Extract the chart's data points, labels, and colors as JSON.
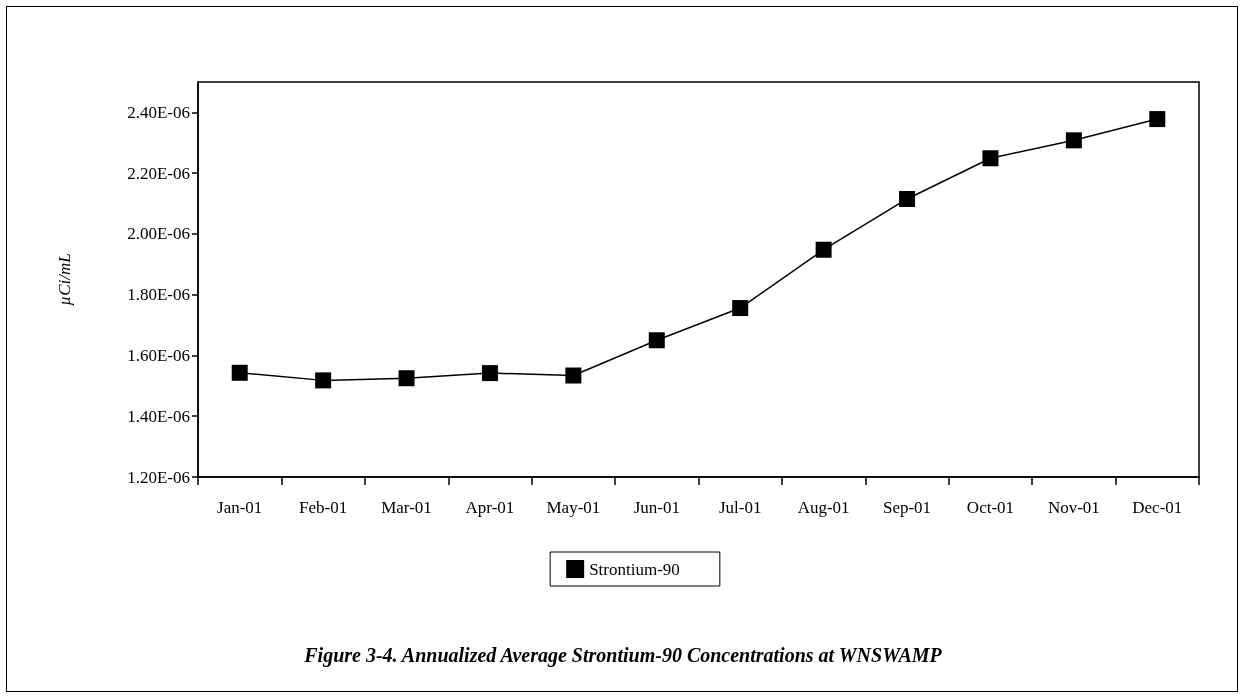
{
  "chart_data": {
    "type": "line",
    "title": "Figure 3-4. Annualized Average Strontium-90 Concentrations at WNSWAMP",
    "ylabel": "µCi/mL",
    "categories": [
      "Jan-01",
      "Feb-01",
      "Mar-01",
      "Apr-01",
      "May-01",
      "Jun-01",
      "Jul-01",
      "Aug-01",
      "Sep-01",
      "Oct-01",
      "Nov-01",
      "Dec-01"
    ],
    "series": [
      {
        "name": "Strontium-90",
        "color": "#000000",
        "values": [
          1.543e-06,
          1.518e-06,
          1.525e-06,
          1.542e-06,
          1.534e-06,
          1.65e-06,
          1.756e-06,
          1.948e-06,
          2.115e-06,
          2.249e-06,
          2.308e-06,
          2.378e-06
        ]
      }
    ],
    "ylim": [
      1.2e-06,
      2.5e-06
    ],
    "yticks": [
      {
        "value": 1.2e-06,
        "label": "1.20E-06"
      },
      {
        "value": 1.4e-06,
        "label": "1.40E-06"
      },
      {
        "value": 1.6e-06,
        "label": "1.60E-06"
      },
      {
        "value": 1.8e-06,
        "label": "1.80E-06"
      },
      {
        "value": 2e-06,
        "label": "2.00E-06"
      },
      {
        "value": 2.2e-06,
        "label": "2.20E-06"
      },
      {
        "value": 2.4e-06,
        "label": "2.40E-06"
      }
    ],
    "grid": false,
    "legend": "bottom",
    "marker": "square",
    "line_style": "solid"
  }
}
